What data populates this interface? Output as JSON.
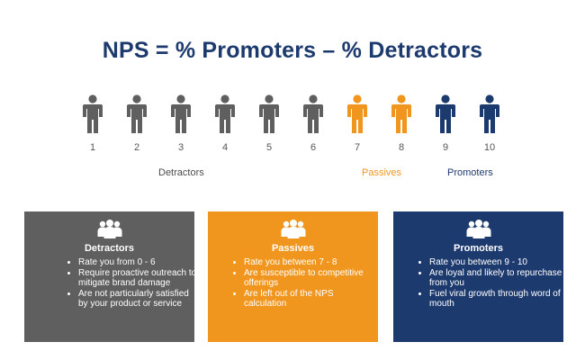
{
  "title": "NPS = % Promoters – % Detractors",
  "colors": {
    "detractor": "#5f5f5f",
    "passive": "#f0961e",
    "promoter": "#1d3a6e",
    "title": "#1d3a6e"
  },
  "scale": [
    {
      "score": "1",
      "group": "detractor"
    },
    {
      "score": "2",
      "group": "detractor"
    },
    {
      "score": "3",
      "group": "detractor"
    },
    {
      "score": "4",
      "group": "detractor"
    },
    {
      "score": "5",
      "group": "detractor"
    },
    {
      "score": "6",
      "group": "detractor"
    },
    {
      "score": "7",
      "group": "passive"
    },
    {
      "score": "8",
      "group": "passive"
    },
    {
      "score": "9",
      "group": "promoter"
    },
    {
      "score": "10",
      "group": "promoter"
    }
  ],
  "group_labels": {
    "detractors": "Detractors",
    "passives": "Passives",
    "promoters": "Promoters"
  },
  "cards": [
    {
      "title": "Detractors",
      "icon": "group-people-icon",
      "bullets": [
        "Rate you from 0 - 6",
        "Require proactive outreach to mitigate brand damage",
        "Are not particularly satisfied by your product or service"
      ]
    },
    {
      "title": "Passives",
      "icon": "group-people-icon",
      "bullets": [
        "Rate you between 7 - 8",
        "Are susceptible to competitive offerings",
        "Are left out of the NPS calculation"
      ]
    },
    {
      "title": "Promoters",
      "icon": "group-people-icon",
      "bullets": [
        "Rate you between 9 - 10",
        "Are loyal and likely to repurchase from you",
        "Fuel viral growth through word of mouth"
      ]
    }
  ]
}
